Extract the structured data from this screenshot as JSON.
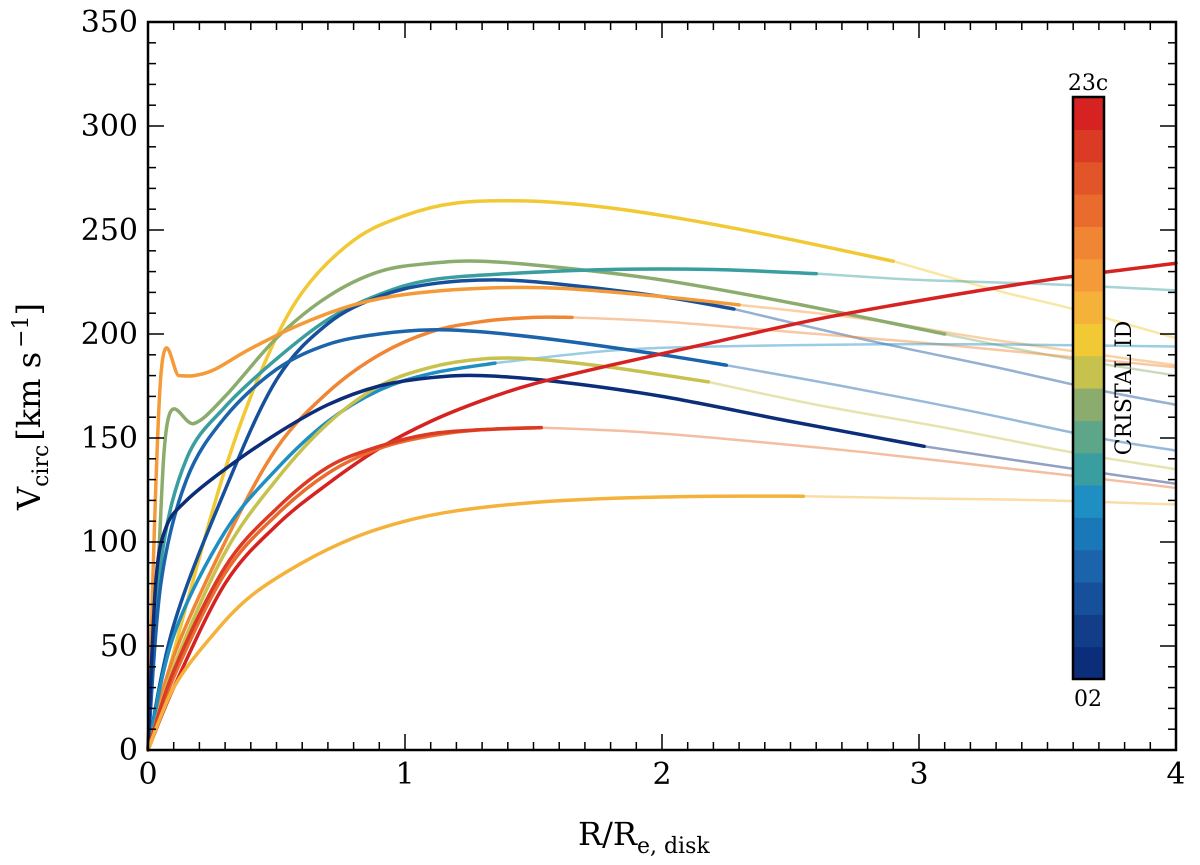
{
  "chart_data": {
    "type": "line",
    "xlabel": {
      "main": "R/R",
      "sub": "e, disk"
    },
    "ylabel": {
      "main": "V",
      "sub": "circ",
      "unit": "[km s",
      "exp": "−1",
      "close": "]"
    },
    "xlim": [
      0,
      4
    ],
    "ylim": [
      0,
      350
    ],
    "x_major_ticks": [
      0,
      1,
      2,
      3,
      4
    ],
    "x_tick_labels": [
      "0",
      "1",
      "2",
      "3",
      "4"
    ],
    "y_major_ticks": [
      0,
      50,
      100,
      150,
      200,
      250,
      300,
      350
    ],
    "y_tick_labels": [
      "0",
      "50",
      "100",
      "150",
      "200",
      "250",
      "300",
      "350"
    ],
    "grid": false,
    "colorbar": {
      "label": "CRISTAL ID",
      "top_label": "23c",
      "bottom_label": "02",
      "colors": [
        "#0c2d7a",
        "#123d89",
        "#17509a",
        "#1b63aa",
        "#1a77b8",
        "#1f8ec2",
        "#3a9d9f",
        "#5ea689",
        "#8cac6e",
        "#c7c14d",
        "#f1c935",
        "#f4b23a",
        "#f49a38",
        "#f08533",
        "#e96c2e",
        "#e25529",
        "#db3b25",
        "#d62321"
      ]
    },
    "series": [
      {
        "name": "curve-yellow-peak",
        "color": "#f1c935",
        "solid_until": 2.9,
        "points": [
          [
            0,
            0
          ],
          [
            0.15,
            70
          ],
          [
            0.3,
            135
          ],
          [
            0.45,
            185
          ],
          [
            0.6,
            220
          ],
          [
            0.8,
            245
          ],
          [
            1.0,
            257
          ],
          [
            1.2,
            263
          ],
          [
            1.45,
            264
          ],
          [
            1.7,
            262
          ],
          [
            2.0,
            257
          ],
          [
            2.4,
            248
          ],
          [
            2.9,
            235
          ],
          [
            3.3,
            221
          ],
          [
            3.6,
            212
          ],
          [
            4.0,
            198
          ]
        ]
      },
      {
        "name": "curve-green-high",
        "color": "#8cac6e",
        "solid_until": 3.1,
        "points": [
          [
            0,
            0
          ],
          [
            0.04,
            90
          ],
          [
            0.08,
            160
          ],
          [
            0.18,
            157
          ],
          [
            0.3,
            170
          ],
          [
            0.5,
            198
          ],
          [
            0.7,
            218
          ],
          [
            0.9,
            230
          ],
          [
            1.1,
            234
          ],
          [
            1.3,
            235
          ],
          [
            1.6,
            232
          ],
          [
            2.0,
            226
          ],
          [
            2.5,
            215
          ],
          [
            3.1,
            200
          ],
          [
            3.5,
            190
          ],
          [
            4.0,
            180
          ]
        ]
      },
      {
        "name": "curve-teal-flat",
        "color": "#3a9d9f",
        "solid_until": 2.6,
        "points": [
          [
            0,
            0
          ],
          [
            0.05,
            90
          ],
          [
            0.15,
            140
          ],
          [
            0.3,
            165
          ],
          [
            0.5,
            188
          ],
          [
            0.7,
            207
          ],
          [
            0.9,
            219
          ],
          [
            1.1,
            226
          ],
          [
            1.4,
            229
          ],
          [
            1.8,
            231
          ],
          [
            2.2,
            231
          ],
          [
            2.6,
            229
          ],
          [
            3.0,
            226
          ],
          [
            3.5,
            224
          ],
          [
            4.0,
            221
          ]
        ]
      },
      {
        "name": "curve-darkblue-mid",
        "color": "#17509a",
        "solid_until": 2.28,
        "points": [
          [
            0,
            0
          ],
          [
            0.1,
            60
          ],
          [
            0.3,
            125
          ],
          [
            0.5,
            178
          ],
          [
            0.7,
            205
          ],
          [
            0.9,
            218
          ],
          [
            1.1,
            224
          ],
          [
            1.35,
            226
          ],
          [
            1.6,
            224
          ],
          [
            2.0,
            218
          ],
          [
            2.28,
            212
          ],
          [
            2.8,
            197
          ],
          [
            3.3,
            184
          ],
          [
            3.7,
            173
          ],
          [
            4.0,
            166
          ]
        ]
      },
      {
        "name": "curve-orange-top",
        "color": "#f49a38",
        "solid_until": 2.3,
        "points": [
          [
            0,
            0
          ],
          [
            0.05,
            180
          ],
          [
            0.12,
            180
          ],
          [
            0.18,
            180
          ],
          [
            0.26,
            183
          ],
          [
            0.4,
            193
          ],
          [
            0.6,
            205
          ],
          [
            0.8,
            214
          ],
          [
            1.0,
            219
          ],
          [
            1.3,
            222
          ],
          [
            1.6,
            222
          ],
          [
            2.0,
            218
          ],
          [
            2.3,
            214
          ],
          [
            2.8,
            207
          ],
          [
            3.3,
            197
          ],
          [
            4.0,
            185
          ]
        ]
      },
      {
        "name": "curve-orange-medium",
        "color": "#f08533",
        "solid_until": 1.65,
        "points": [
          [
            0,
            0
          ],
          [
            0.1,
            45
          ],
          [
            0.3,
            100
          ],
          [
            0.5,
            145
          ],
          [
            0.7,
            172
          ],
          [
            0.9,
            190
          ],
          [
            1.1,
            201
          ],
          [
            1.3,
            206
          ],
          [
            1.5,
            208
          ],
          [
            1.65,
            208
          ],
          [
            2.0,
            206
          ],
          [
            2.5,
            201
          ],
          [
            3.0,
            196
          ],
          [
            3.5,
            190
          ],
          [
            4.0,
            184
          ]
        ]
      },
      {
        "name": "curve-blue-mid",
        "color": "#1b63aa",
        "solid_until": 2.25,
        "points": [
          [
            0,
            0
          ],
          [
            0.05,
            80
          ],
          [
            0.15,
            130
          ],
          [
            0.3,
            160
          ],
          [
            0.5,
            183
          ],
          [
            0.7,
            195
          ],
          [
            0.9,
            200
          ],
          [
            1.1,
            202
          ],
          [
            1.3,
            201
          ],
          [
            1.6,
            197
          ],
          [
            2.0,
            190
          ],
          [
            2.25,
            185
          ],
          [
            2.7,
            175
          ],
          [
            3.2,
            163
          ],
          [
            3.7,
            150
          ],
          [
            4.0,
            144
          ]
        ]
      },
      {
        "name": "curve-lightblue",
        "color": "#1f8ec2",
        "solid_until": 1.35,
        "points": [
          [
            0,
            0
          ],
          [
            0.1,
            55
          ],
          [
            0.3,
            105
          ],
          [
            0.5,
            135
          ],
          [
            0.7,
            158
          ],
          [
            0.9,
            173
          ],
          [
            1.1,
            181
          ],
          [
            1.35,
            186
          ],
          [
            1.8,
            192
          ],
          [
            2.2,
            194
          ],
          [
            2.8,
            195
          ],
          [
            3.3,
            195
          ],
          [
            4.0,
            194
          ]
        ]
      },
      {
        "name": "curve-olive",
        "color": "#c7c14d",
        "solid_until": 2.18,
        "points": [
          [
            0,
            0
          ],
          [
            0.1,
            40
          ],
          [
            0.3,
            95
          ],
          [
            0.5,
            130
          ],
          [
            0.7,
            157
          ],
          [
            0.9,
            175
          ],
          [
            1.1,
            184
          ],
          [
            1.3,
            188
          ],
          [
            1.5,
            188
          ],
          [
            1.8,
            184
          ],
          [
            2.18,
            177
          ],
          [
            2.6,
            166
          ],
          [
            3.1,
            155
          ],
          [
            3.6,
            143
          ],
          [
            4.0,
            135
          ]
        ]
      },
      {
        "name": "curve-navy",
        "color": "#0c2d7a",
        "solid_until": 3.02,
        "points": [
          [
            0,
            0
          ],
          [
            0.03,
            80
          ],
          [
            0.07,
            107
          ],
          [
            0.15,
            120
          ],
          [
            0.3,
            135
          ],
          [
            0.5,
            152
          ],
          [
            0.7,
            166
          ],
          [
            0.9,
            175
          ],
          [
            1.1,
            179
          ],
          [
            1.3,
            180
          ],
          [
            1.6,
            177
          ],
          [
            2.0,
            170
          ],
          [
            2.5,
            158
          ],
          [
            3.02,
            146
          ],
          [
            3.5,
            137
          ],
          [
            4.0,
            128
          ]
        ]
      },
      {
        "name": "curve-red-rising",
        "color": "#d62321",
        "solid_until": 4.0,
        "points": [
          [
            0,
            0
          ],
          [
            0.1,
            30
          ],
          [
            0.3,
            80
          ],
          [
            0.5,
            108
          ],
          [
            0.7,
            128
          ],
          [
            0.9,
            145
          ],
          [
            1.1,
            158
          ],
          [
            1.3,
            168
          ],
          [
            1.5,
            176
          ],
          [
            1.8,
            185
          ],
          [
            2.2,
            196
          ],
          [
            2.6,
            207
          ],
          [
            3.0,
            216
          ],
          [
            3.5,
            226
          ],
          [
            4.0,
            234
          ]
        ]
      },
      {
        "name": "curve-redorange-low",
        "color": "#e96c2e",
        "solid_until": 1.53,
        "points": [
          [
            0,
            0
          ],
          [
            0.1,
            35
          ],
          [
            0.3,
            85
          ],
          [
            0.5,
            113
          ],
          [
            0.7,
            133
          ],
          [
            0.9,
            145
          ],
          [
            1.1,
            151
          ],
          [
            1.3,
            154
          ],
          [
            1.53,
            155
          ],
          [
            1.9,
            153
          ],
          [
            2.3,
            149
          ],
          [
            2.8,
            143
          ],
          [
            3.3,
            136
          ],
          [
            3.8,
            129
          ],
          [
            4.0,
            126
          ]
        ]
      },
      {
        "name": "curve-red-low",
        "color": "#db3b25",
        "solid_until": 1.53,
        "points": [
          [
            0,
            0
          ],
          [
            0.1,
            38
          ],
          [
            0.3,
            88
          ],
          [
            0.5,
            116
          ],
          [
            0.7,
            136
          ],
          [
            0.9,
            146
          ],
          [
            1.1,
            152
          ],
          [
            1.3,
            154
          ],
          [
            1.53,
            155
          ]
        ]
      },
      {
        "name": "curve-orangeyellow-low",
        "color": "#f4b23a",
        "solid_until": 2.55,
        "points": [
          [
            0,
            0
          ],
          [
            0.1,
            30
          ],
          [
            0.25,
            55
          ],
          [
            0.4,
            74
          ],
          [
            0.6,
            90
          ],
          [
            0.8,
            102
          ],
          [
            1.0,
            110
          ],
          [
            1.2,
            115
          ],
          [
            1.5,
            119
          ],
          [
            1.8,
            121
          ],
          [
            2.2,
            122
          ],
          [
            2.55,
            122
          ],
          [
            3.0,
            121
          ],
          [
            3.5,
            120
          ],
          [
            4.0,
            118
          ]
        ]
      }
    ]
  }
}
